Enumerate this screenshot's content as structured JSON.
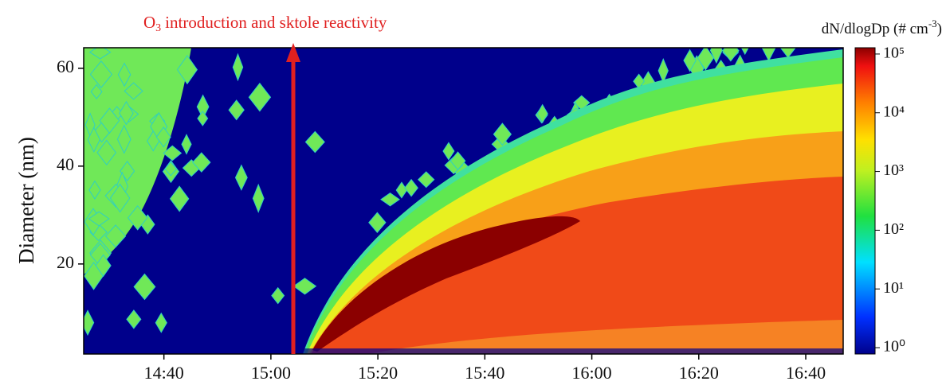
{
  "chart_data": {
    "type": "heatmap",
    "annotation": {
      "text": "O",
      "subscript": "3",
      "rest": "introduction and sktole reactivity"
    },
    "y_label": "Diameter (nm)",
    "colorbar_label": {
      "text": "dN/dlogDp (# cm",
      "superscript": "-3",
      "rest": ")"
    },
    "xlim": [
      "14:25",
      "16:47"
    ],
    "xticks": [
      "14:40",
      "15:00",
      "15:20",
      "15:40",
      "16:00",
      "16:20",
      "16:40"
    ],
    "ylim": [
      1.6,
      64.2
    ],
    "yticks": [
      20,
      40,
      60
    ],
    "clim": [
      0.78,
      128000
    ],
    "colorbar_log_scale": true,
    "cticks": [
      {
        "value": 1,
        "label": "10⁰"
      },
      {
        "value": 10,
        "label": "10¹"
      },
      {
        "value": 100,
        "label": "10²"
      },
      {
        "value": 1000,
        "label": "10³"
      },
      {
        "value": 10000,
        "label": "10⁴"
      },
      {
        "value": 100000,
        "label": "10⁵"
      }
    ]
  }
}
